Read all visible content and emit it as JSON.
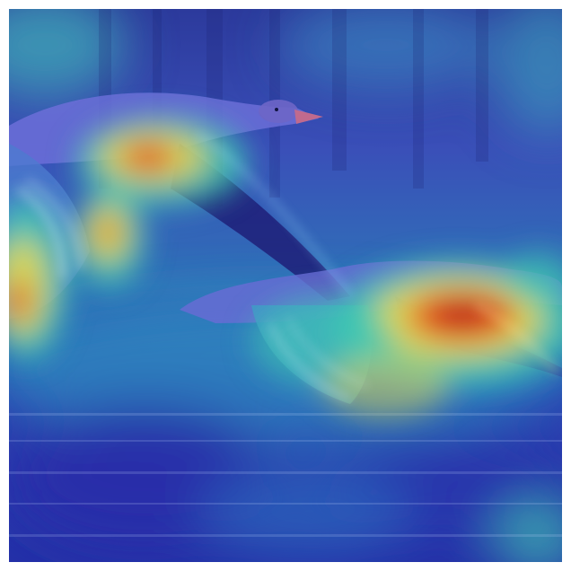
{
  "image": {
    "subject": "two-geese-in-flight",
    "overlay": "attention-heatmap",
    "colormap": "jet",
    "palette": {
      "low": "#2a2fb0",
      "mid_low": "#2b7fd0",
      "mid": "#3fc9b0",
      "mid_high": "#e8d84a",
      "high": "#e23a1c",
      "peak": "#b0101a"
    }
  }
}
